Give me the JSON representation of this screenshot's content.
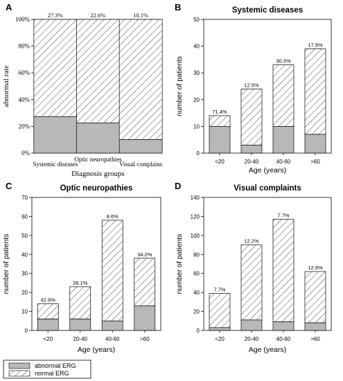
{
  "colors": {
    "abnormal": "#b8b8b8",
    "normal_fill": "#ffffff",
    "hatch": "#333333",
    "axis": "#000000"
  },
  "legend": {
    "abnormal": "abnormal ERG",
    "normal": "normal ERG"
  },
  "chart_data": [
    {
      "letter": "A",
      "type": "bar",
      "stacked": true,
      "title": "",
      "xlabel": "Diagnosis groups",
      "ylabel": "abnormal rate",
      "categories": [
        "Systemic diseases",
        "Optic neuropathies",
        "Visual complains"
      ],
      "ylim": [
        0,
        100
      ],
      "yticks": [
        "0%",
        "20%",
        "40%",
        "60%",
        "80%",
        "100%"
      ],
      "series": [
        {
          "name": "abnormal ERG",
          "values": [
            27.3,
            22.6,
            10.1
          ]
        },
        {
          "name": "normal ERG",
          "values": [
            72.7,
            77.4,
            89.9
          ]
        }
      ],
      "labels": [
        "27.3%",
        "22.6%",
        "10.1%"
      ]
    },
    {
      "letter": "B",
      "type": "bar",
      "stacked": true,
      "title": "Systemic diseases",
      "xlabel": "Age (years)",
      "ylabel": "number of patients",
      "categories": [
        "<20",
        "20-40",
        "40-60",
        ">60"
      ],
      "ylim": [
        0,
        50
      ],
      "yticks": [
        "0",
        "10",
        "20",
        "30",
        "40",
        "50"
      ],
      "series": [
        {
          "name": "abnormal ERG",
          "values": [
            10,
            3,
            10,
            7
          ]
        },
        {
          "name": "normal ERG",
          "values": [
            4,
            21,
            23,
            32
          ]
        }
      ],
      "labels": [
        "71.4%",
        "12.5%",
        "30.3%",
        "17.9%"
      ]
    },
    {
      "letter": "C",
      "type": "bar",
      "stacked": true,
      "title": "Optic neuropathies",
      "xlabel": "Age (years)",
      "ylabel": "number of patients",
      "categories": [
        "<20",
        "20-40",
        "40-60",
        ">60"
      ],
      "ylim": [
        0,
        70
      ],
      "yticks": [
        "0",
        "10",
        "20",
        "30",
        "40",
        "50",
        "60",
        "70"
      ],
      "series": [
        {
          "name": "abnormal ERG",
          "values": [
            6,
            6,
            5,
            13
          ]
        },
        {
          "name": "normal ERG",
          "values": [
            8,
            17,
            53,
            25
          ]
        }
      ],
      "labels": [
        "42.9%",
        "26.1%",
        "8.6%",
        "34.2%"
      ]
    },
    {
      "letter": "D",
      "type": "bar",
      "stacked": true,
      "title": "Visual complaints",
      "xlabel": "Age (years)",
      "ylabel": "number of patients",
      "categories": [
        "<20",
        "20-40",
        "40-60",
        ">60"
      ],
      "ylim": [
        0,
        140
      ],
      "yticks": [
        "0",
        "20",
        "40",
        "60",
        "80",
        "100",
        "120",
        "140"
      ],
      "series": [
        {
          "name": "abnormal ERG",
          "values": [
            3,
            11,
            9,
            8
          ]
        },
        {
          "name": "normal ERG",
          "values": [
            36,
            79,
            108,
            54
          ]
        }
      ],
      "labels": [
        "7.7%",
        "12.2%",
        "7.7%",
        "12.9%"
      ]
    }
  ]
}
